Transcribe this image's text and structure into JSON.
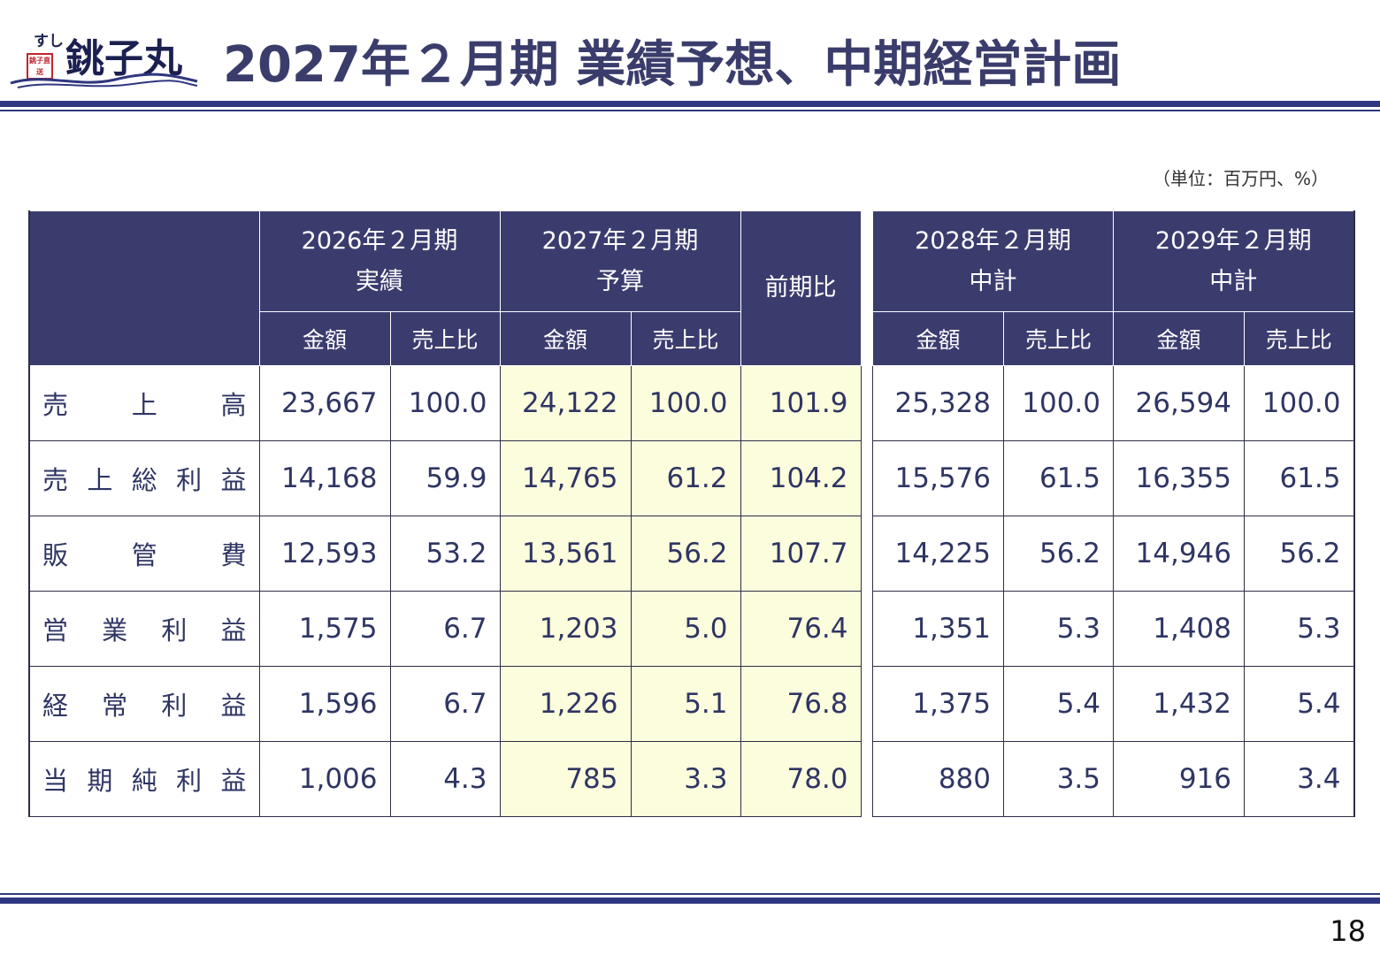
{
  "logo": {
    "small_text": "すし",
    "seal_text": "銚子直送",
    "main_text": "銚子丸"
  },
  "title": "2027年２月期 業績予想、中期経営計画",
  "unit_note": "（単位：百万円、%）",
  "left_table": {
    "groups": [
      {
        "line1": "2026年２月期",
        "line2": "実績"
      },
      {
        "line1": "2027年２月期",
        "line2": "予算"
      }
    ],
    "yoy_header": "前期比",
    "sub_headers": [
      "金額",
      "売上比",
      "金額",
      "売上比"
    ],
    "rows": [
      {
        "label": "売上高",
        "values": [
          "23,667",
          "100.0",
          "24,122",
          "100.0",
          "101.9"
        ]
      },
      {
        "label": "売上総利益",
        "values": [
          "14,168",
          "59.9",
          "14,765",
          "61.2",
          "104.2"
        ]
      },
      {
        "label": "販管費",
        "values": [
          "12,593",
          "53.2",
          "13,561",
          "56.2",
          "107.7"
        ]
      },
      {
        "label": "営業利益",
        "values": [
          "1,575",
          "6.7",
          "1,203",
          "5.0",
          "76.4"
        ]
      },
      {
        "label": "経常利益",
        "values": [
          "1,596",
          "6.7",
          "1,226",
          "5.1",
          "76.8"
        ]
      },
      {
        "label": "当期純利益",
        "values": [
          "1,006",
          "4.3",
          "785",
          "3.3",
          "78.0"
        ]
      }
    ]
  },
  "right_table": {
    "groups": [
      {
        "line1": "2028年２月期",
        "line2": "中計"
      },
      {
        "line1": "2029年２月期",
        "line2": "中計"
      }
    ],
    "sub_headers": [
      "金額",
      "売上比",
      "金額",
      "売上比"
    ],
    "rows": [
      {
        "values": [
          "25,328",
          "100.0",
          "26,594",
          "100.0"
        ]
      },
      {
        "values": [
          "15,576",
          "61.5",
          "16,355",
          "61.5"
        ]
      },
      {
        "values": [
          "14,225",
          "56.2",
          "14,946",
          "56.2"
        ]
      },
      {
        "values": [
          "1,351",
          "5.3",
          "1,408",
          "5.3"
        ]
      },
      {
        "values": [
          "1,375",
          "5.4",
          "1,432",
          "5.4"
        ]
      },
      {
        "values": [
          "880",
          "3.5",
          "916",
          "3.4"
        ]
      }
    ]
  },
  "page_number": "18",
  "colors": {
    "header_bg": "#3b3c6e",
    "highlight_bg": "#fcfddd",
    "rule": "#2f3680",
    "title": "#3a3d6b"
  }
}
